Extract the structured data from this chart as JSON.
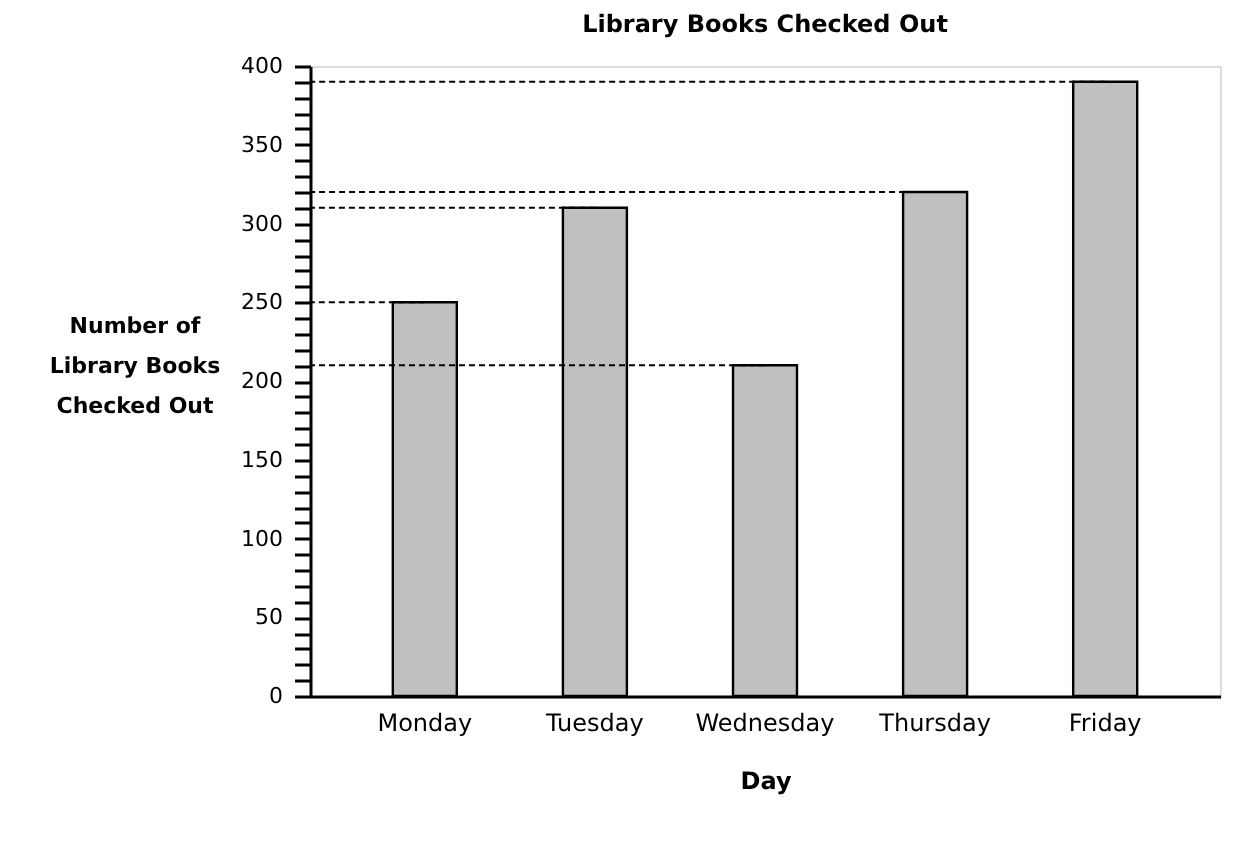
{
  "chart_data": {
    "type": "bar",
    "title": "Library Books Checked Out",
    "xlabel": "Day",
    "ylabel": "Number of Library Books Checked Out",
    "categories": [
      "Monday",
      "Tuesday",
      "Wednesday",
      "Thursday",
      "Friday"
    ],
    "values": [
      250,
      310,
      210,
      320,
      390
    ],
    "color": "#c0c0c0",
    "ylim": [
      0,
      400
    ],
    "yticks": [
      0,
      {
        "value": 10,
        "label": null
      },
      {
        "value": 20,
        "label": null
      },
      {
        "value": 30,
        "label": null
      },
      {
        "value": 40,
        "label": null
      },
      50,
      {
        "value": 60,
        "label": null
      },
      {
        "value": 70,
        "label": null
      },
      {
        "value": 80,
        "label": null
      },
      {
        "value": 90,
        "label": null
      },
      100,
      {
        "value": 110,
        "label": null
      },
      {
        "value": 120,
        "label": null
      },
      {
        "value": 130,
        "label": null
      },
      {
        "value": 140,
        "label": null
      },
      150,
      {
        "value": 160,
        "label": null
      },
      {
        "value": 170,
        "label": null
      },
      {
        "value": 180,
        "label": null
      },
      {
        "value": 190,
        "label": null
      },
      200,
      {
        "value": 210,
        "label": null
      },
      {
        "value": 220,
        "label": null
      },
      {
        "value": 230,
        "label": null
      },
      {
        "value": 240,
        "label": null
      },
      250,
      {
        "value": 260,
        "label": null
      },
      {
        "value": 270,
        "label": null
      },
      {
        "value": 280,
        "label": null
      },
      {
        "value": 290,
        "label": null
      },
      300,
      {
        "value": 310,
        "label": null
      },
      {
        "value": 320,
        "label": null
      },
      {
        "value": 330,
        "label": null
      },
      {
        "value": 340,
        "label": null
      },
      350,
      {
        "value": 360,
        "label": null
      },
      {
        "value": 370,
        "label": null
      },
      {
        "value": 380,
        "label": null
      },
      {
        "value": 390,
        "label": null
      },
      400
    ],
    "ref_lines": [
      {
        "axis": "y",
        "value": 390,
        "line_style": "dashed"
      },
      {
        "axis": "y",
        "value": 320,
        "line_style": "dashed"
      },
      {
        "axis": "y",
        "value": 310,
        "line_style": "dashed"
      },
      {
        "axis": "y",
        "value": 250,
        "line_style": "dashed"
      },
      {
        "axis": "y",
        "value": 210,
        "line_style": "dashed"
      }
    ],
    "grid": false
  }
}
